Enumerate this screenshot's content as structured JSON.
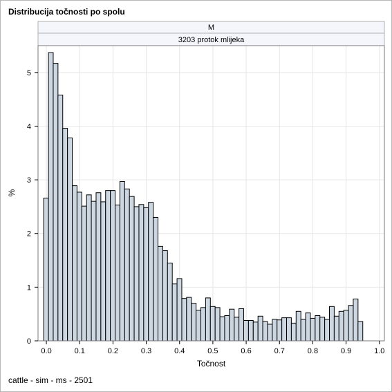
{
  "title": "Distribucija točnosti po spolu",
  "footnote": "cattle - sim - ms - 2501",
  "panel": {
    "row_header": "M",
    "col_header": "3203 protok mlijeka"
  },
  "colors": {
    "bar_fill": "#cdd7e2",
    "bar_stroke": "#000000",
    "grid": "#e6e6e6",
    "strip_fill": "#f4f6fb",
    "strip_border": "#b0b0b0"
  },
  "chart_data": {
    "type": "bar",
    "subtype": "histogram",
    "xlabel": "Točnost",
    "ylabel": "%",
    "xlim": [
      -0.025,
      1.015
    ],
    "ylim": [
      0,
      5.5
    ],
    "bin_width": 0.0143,
    "bin_start": -0.008,
    "grid": true,
    "x_ticks": [
      "0.0",
      "0.1",
      "0.2",
      "0.3",
      "0.4",
      "0.5",
      "0.6",
      "0.7",
      "0.8",
      "0.9",
      "1.0"
    ],
    "x_tick_values": [
      0,
      0.1,
      0.2,
      0.3,
      0.4,
      0.5,
      0.6,
      0.7,
      0.8,
      0.9,
      1.0
    ],
    "y_ticks": [
      "0",
      "1",
      "2",
      "3",
      "4",
      "5"
    ],
    "y_tick_values": [
      0,
      1,
      2,
      3,
      4,
      5
    ],
    "values": [
      2.66,
      5.37,
      5.17,
      4.58,
      3.96,
      3.78,
      2.89,
      2.77,
      2.51,
      2.72,
      2.6,
      2.76,
      2.59,
      2.8,
      2.8,
      2.53,
      2.97,
      2.83,
      2.69,
      2.5,
      2.54,
      2.48,
      2.58,
      2.3,
      1.76,
      1.68,
      1.45,
      1.06,
      1.16,
      0.79,
      0.81,
      0.7,
      0.57,
      0.62,
      0.8,
      0.64,
      0.62,
      0.45,
      0.47,
      0.59,
      0.44,
      0.6,
      0.38,
      0.38,
      0.35,
      0.46,
      0.36,
      0.31,
      0.4,
      0.39,
      0.43,
      0.43,
      0.33,
      0.55,
      0.4,
      0.52,
      0.42,
      0.47,
      0.44,
      0.4,
      0.64,
      0.46,
      0.55,
      0.57,
      0.66,
      0.78,
      0.36
    ]
  }
}
